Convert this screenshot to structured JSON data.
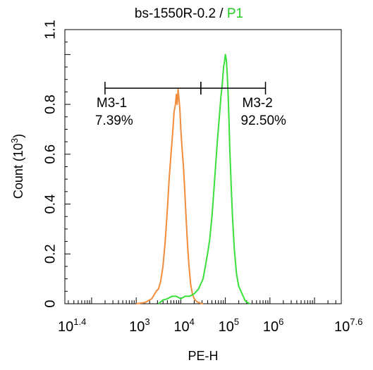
{
  "chart_data": {
    "type": "line",
    "title": "bs-1550R-0.2 / P1",
    "title_sample": "bs-1550R-0.2",
    "title_sep": " / ",
    "title_gate": "P1",
    "title_gate_color": "#22cc22",
    "xlabel": "PE-H",
    "ylabel": "Count  (10",
    "ylabel_exp": "3",
    "ylabel_close": ")",
    "x_scale": "log10",
    "xlim_log": [
      1.4,
      7.6
    ],
    "ylim": [
      0,
      1.1
    ],
    "y_ticks": [
      {
        "v": 0,
        "label": "0"
      },
      {
        "v": 0.2,
        "label": "0.2"
      },
      {
        "v": 0.4,
        "label": "0.4"
      },
      {
        "v": 0.6,
        "label": "0.6"
      },
      {
        "v": 0.8,
        "label": "0.8"
      },
      {
        "v": 1.1,
        "label": "1.1"
      }
    ],
    "x_ticks": [
      {
        "v": 1.4,
        "base": "10",
        "exp": "1.4"
      },
      {
        "v": 3,
        "base": "10",
        "exp": "3"
      },
      {
        "v": 4,
        "base": "10",
        "exp": "4"
      },
      {
        "v": 5,
        "base": "10",
        "exp": "5"
      },
      {
        "v": 6,
        "base": "10",
        "exp": "6"
      },
      {
        "v": 7.6,
        "base": "10",
        "exp": "7.6"
      }
    ],
    "series": [
      {
        "color": "#f08c3c",
        "x_log": [
          3.0,
          3.2,
          3.35,
          3.45,
          3.5,
          3.55,
          3.6,
          3.65,
          3.7,
          3.74,
          3.78,
          3.82,
          3.85,
          3.88,
          3.9,
          3.92,
          3.94,
          3.96,
          3.98,
          4.0,
          4.03,
          4.06,
          4.09,
          4.12,
          4.15,
          4.18,
          4.22,
          4.26,
          4.3,
          4.35,
          4.4,
          4.45,
          4.5
        ],
        "y": [
          0.0,
          0.005,
          0.02,
          0.05,
          0.06,
          0.09,
          0.15,
          0.25,
          0.38,
          0.5,
          0.6,
          0.69,
          0.77,
          0.8,
          0.84,
          0.8,
          0.86,
          0.82,
          0.78,
          0.7,
          0.62,
          0.55,
          0.45,
          0.34,
          0.24,
          0.16,
          0.08,
          0.04,
          0.02,
          0.01,
          0.005,
          0.002,
          0.0
        ]
      },
      {
        "color": "#3ae03a",
        "x_log": [
          3.5,
          3.6,
          3.7,
          3.8,
          3.9,
          4.0,
          4.1,
          4.2,
          4.3,
          4.4,
          4.5,
          4.55,
          4.6,
          4.65,
          4.7,
          4.74,
          4.78,
          4.82,
          4.86,
          4.9,
          4.93,
          4.96,
          4.98,
          5.0,
          5.02,
          5.04,
          5.06,
          5.08,
          5.1,
          5.13,
          5.16,
          5.2,
          5.25,
          5.3,
          5.35,
          5.4,
          5.45,
          5.55
        ],
        "y": [
          0.0,
          0.015,
          0.02,
          0.03,
          0.03,
          0.02,
          0.03,
          0.03,
          0.04,
          0.06,
          0.1,
          0.15,
          0.2,
          0.26,
          0.35,
          0.45,
          0.55,
          0.65,
          0.74,
          0.83,
          0.88,
          0.95,
          0.97,
          1.0,
          0.98,
          0.93,
          0.85,
          0.74,
          0.62,
          0.48,
          0.35,
          0.22,
          0.12,
          0.07,
          0.05,
          0.03,
          0.01,
          0.0
        ]
      }
    ],
    "gates": [
      {
        "name": "M3-1",
        "percent": "7.39%",
        "x_start_log": 2.3,
        "x_end_log": 4.45,
        "y": 0.865
      },
      {
        "name": "M3-2",
        "percent": "92.50%",
        "x_start_log": 4.45,
        "x_end_log": 5.9,
        "y": 0.865
      }
    ],
    "grid": false,
    "legend": "none"
  }
}
